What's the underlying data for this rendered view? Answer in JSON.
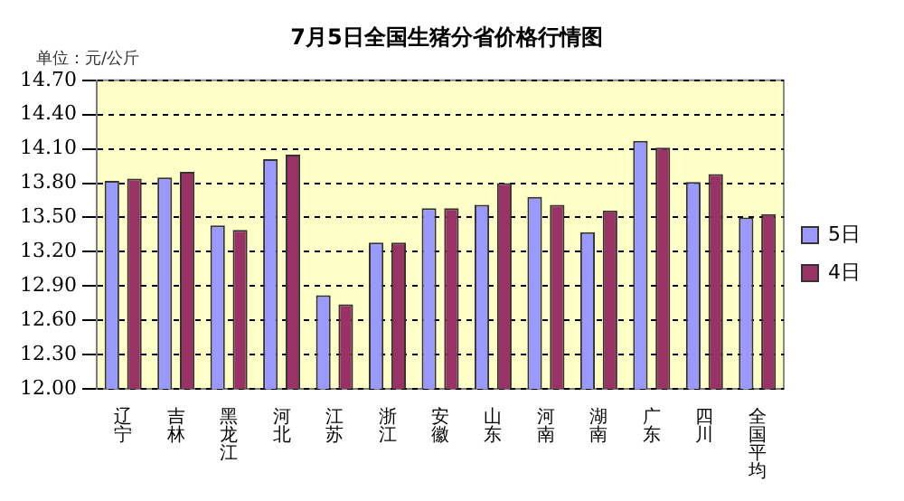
{
  "chart_data": {
    "type": "bar",
    "title": "7月5日全国生猪分省价格行情图",
    "annotations": [
      "单位：元/公斤"
    ],
    "categories": [
      "辽宁",
      "吉林",
      "黑龙江",
      "河北",
      "江苏",
      "浙江",
      "安徽",
      "山东",
      "河南",
      "湖南",
      "广东",
      "四川",
      "全国平均"
    ],
    "series": [
      {
        "name": "5日",
        "color": "#9999ff",
        "values": [
          13.82,
          13.85,
          13.43,
          14.01,
          12.82,
          13.28,
          13.58,
          13.61,
          13.68,
          13.37,
          14.17,
          13.81,
          13.5
        ]
      },
      {
        "name": "4日",
        "color": "#993366",
        "values": [
          13.84,
          13.9,
          13.39,
          14.05,
          12.74,
          13.28,
          13.58,
          13.8,
          13.61,
          13.56,
          14.11,
          13.88,
          13.53
        ]
      }
    ],
    "ylim": [
      12.0,
      14.7
    ],
    "yticks": [
      {
        "value": 12,
        "label": "12.00"
      },
      {
        "value": 12.3,
        "label": "12.30"
      },
      {
        "value": 12.6,
        "label": "12.60"
      },
      {
        "value": 12.9,
        "label": "12.90"
      },
      {
        "value": 13.2,
        "label": "13.20"
      },
      {
        "value": 13.5,
        "label": "13.50"
      },
      {
        "value": 13.8,
        "label": "13.80"
      },
      {
        "value": 14.1,
        "label": "14.10"
      },
      {
        "value": 14.4,
        "label": "14.40"
      },
      {
        "value": 14.7,
        "label": "14.70"
      }
    ],
    "grid": "y",
    "legend": "right"
  }
}
